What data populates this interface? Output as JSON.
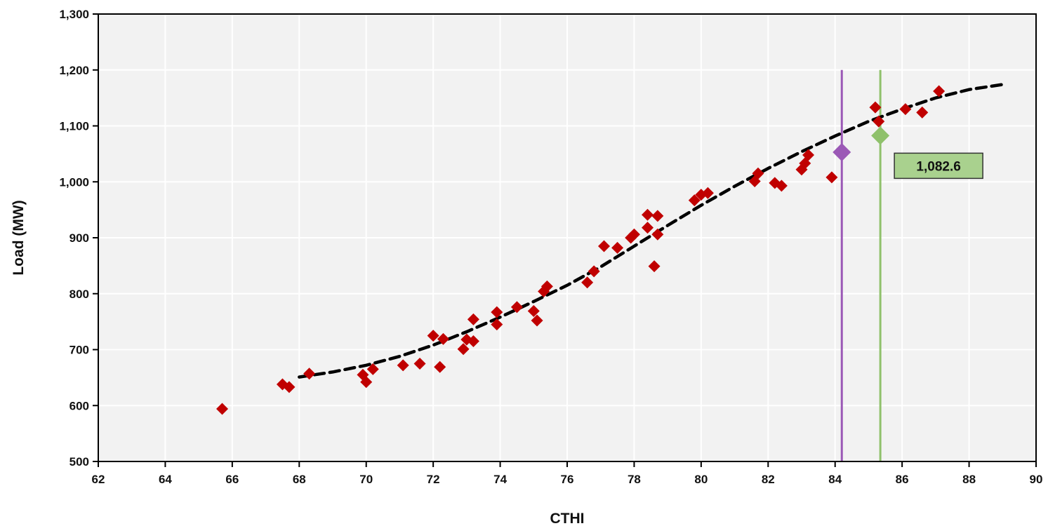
{
  "chart_data": {
    "type": "scatter",
    "title": "",
    "xlabel": "CTHI",
    "ylabel": "Load (MW)",
    "xlim": [
      62,
      90
    ],
    "ylim": [
      500,
      1300
    ],
    "x_ticks": [
      62,
      64,
      66,
      68,
      70,
      72,
      74,
      76,
      78,
      80,
      82,
      84,
      86,
      88,
      90
    ],
    "y_ticks": [
      500,
      600,
      700,
      800,
      900,
      1000,
      1100,
      1200,
      1300
    ],
    "x_tick_labels": [
      "62",
      "64",
      "66",
      "68",
      "70",
      "72",
      "74",
      "76",
      "78",
      "80",
      "82",
      "84",
      "86",
      "88",
      "90"
    ],
    "y_tick_labels": [
      "500",
      "600",
      "700",
      "800",
      "900",
      "1,000",
      "1,100",
      "1,200",
      "1,300"
    ],
    "grid": true,
    "background_color": "#f2f2f2",
    "series": [
      {
        "marker": "diamond",
        "color": "#c00000",
        "points": [
          [
            65.7,
            594
          ],
          [
            67.5,
            638
          ],
          [
            67.7,
            633
          ],
          [
            68.3,
            657
          ],
          [
            69.9,
            655
          ],
          [
            70.0,
            642
          ],
          [
            70.2,
            665
          ],
          [
            71.1,
            672
          ],
          [
            71.6,
            675
          ],
          [
            72.0,
            725
          ],
          [
            72.2,
            669
          ],
          [
            72.3,
            719
          ],
          [
            72.9,
            701
          ],
          [
            73.0,
            718
          ],
          [
            73.2,
            715
          ],
          [
            73.2,
            754
          ],
          [
            73.9,
            745
          ],
          [
            73.9,
            767
          ],
          [
            74.5,
            776
          ],
          [
            75.0,
            769
          ],
          [
            75.1,
            752
          ],
          [
            75.3,
            804
          ],
          [
            75.4,
            813
          ],
          [
            76.6,
            820
          ],
          [
            76.8,
            840
          ],
          [
            77.1,
            885
          ],
          [
            77.5,
            882
          ],
          [
            77.9,
            900
          ],
          [
            78.0,
            906
          ],
          [
            78.4,
            941
          ],
          [
            78.4,
            918
          ],
          [
            78.6,
            849
          ],
          [
            78.7,
            906
          ],
          [
            78.7,
            939
          ],
          [
            79.8,
            967
          ],
          [
            80.0,
            977
          ],
          [
            80.2,
            980
          ],
          [
            81.6,
            1001
          ],
          [
            81.7,
            1015
          ],
          [
            82.2,
            998
          ],
          [
            82.4,
            993
          ],
          [
            83.0,
            1022
          ],
          [
            83.1,
            1033
          ],
          [
            83.2,
            1048
          ],
          [
            83.9,
            1008
          ],
          [
            85.2,
            1133
          ],
          [
            85.3,
            1108
          ],
          [
            86.1,
            1130
          ],
          [
            86.6,
            1124
          ],
          [
            87.1,
            1162
          ]
        ]
      }
    ],
    "trendline": {
      "style": "dashed",
      "color": "#000000",
      "points": [
        [
          68.0,
          651
        ],
        [
          69.0,
          660
        ],
        [
          70.0,
          672
        ],
        [
          71.0,
          688
        ],
        [
          72.0,
          708
        ],
        [
          73.0,
          732
        ],
        [
          74.0,
          758
        ],
        [
          75.0,
          786
        ],
        [
          76.0,
          815
        ],
        [
          77.0,
          848
        ],
        [
          78.0,
          885
        ],
        [
          79.0,
          922
        ],
        [
          80.0,
          958
        ],
        [
          81.0,
          992
        ],
        [
          82.0,
          1024
        ],
        [
          83.0,
          1054
        ],
        [
          84.0,
          1082
        ],
        [
          85.0,
          1108
        ],
        [
          86.0,
          1130
        ],
        [
          87.0,
          1150
        ],
        [
          88.0,
          1165
        ],
        [
          89.0,
          1174
        ]
      ]
    },
    "markers": [
      {
        "x": 84.2,
        "y": 1053,
        "color": "#9b59b6",
        "line_from": 500,
        "line_to": 1200
      },
      {
        "x": 85.35,
        "y": 1082.6,
        "color": "#8fc16b",
        "line_from": 500,
        "line_to": 1200
      }
    ],
    "annotations": [
      {
        "text": "1,082.6",
        "fill": "#a9d18e",
        "anchor_marker": 1
      }
    ]
  }
}
